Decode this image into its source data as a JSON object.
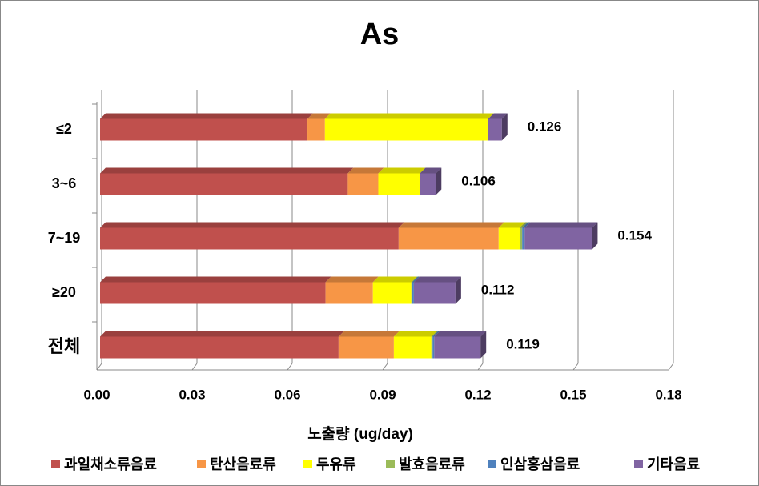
{
  "chart_data": {
    "type": "stacked-bar-horizontal",
    "title": "As",
    "x_label": "노출량 (ug/day)",
    "categories": [
      "≤2",
      "3~6",
      "7~19",
      "≥20",
      "전체"
    ],
    "series": [
      {
        "name": "과일채소류음료",
        "color": "#c0504d",
        "values": [
          0.0653,
          0.078,
          0.094,
          0.071,
          0.0751
        ]
      },
      {
        "name": "탄산음료류",
        "color": "#f79646",
        "values": [
          0.0055,
          0.0096,
          0.0315,
          0.0149,
          0.0174
        ]
      },
      {
        "name": "두유류",
        "color": "#ffff00",
        "values": [
          0.0514,
          0.0131,
          0.0066,
          0.0121,
          0.0118
        ]
      },
      {
        "name": "발효음료류",
        "color": "#9bbb59",
        "values": [
          0,
          0,
          0.0008,
          0.0003,
          0.0004
        ]
      },
      {
        "name": "인삼홍삼음료",
        "color": "#4f81bd",
        "values": [
          0,
          0,
          0.0008,
          0.0005,
          0.0005
        ]
      },
      {
        "name": "기타음료",
        "color": "#8064a2",
        "values": [
          0.0043,
          0.005,
          0.0212,
          0.0131,
          0.0146
        ]
      }
    ],
    "totals": [
      0.126,
      0.106,
      0.154,
      0.112,
      0.119
    ],
    "xlim": [
      0,
      0.18
    ],
    "xticks": [
      {
        "value": 0,
        "label": "0.00"
      },
      {
        "value": 0.03,
        "label": "0.03"
      },
      {
        "value": 0.06,
        "label": "0.06"
      },
      {
        "value": 0.09,
        "label": "0.09"
      },
      {
        "value": 0.12,
        "label": "0.12"
      },
      {
        "value": 0.15,
        "label": "0.15"
      },
      {
        "value": 0.18,
        "label": "0.18"
      }
    ],
    "grid": true,
    "legend": "bottom"
  }
}
